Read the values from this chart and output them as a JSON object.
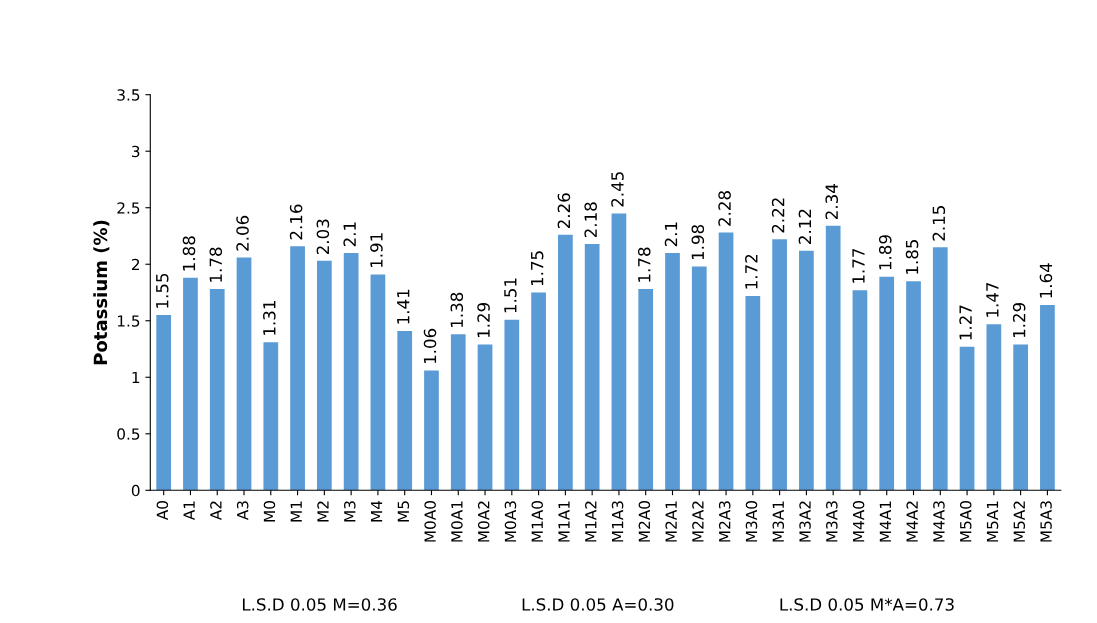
{
  "chart_data": {
    "type": "bar",
    "ylabel": "Potassium (%)",
    "categories": [
      "A0",
      "A1",
      "A2",
      "A3",
      "M0",
      "M1",
      "M2",
      "M3",
      "M4",
      "M5",
      "M0A0",
      "M0A1",
      "M0A2",
      "M0A3",
      "M1A0",
      "M1A1",
      "M1A2",
      "M1A3",
      "M2A0",
      "M2A1",
      "M2A2",
      "M2A3",
      "M3A0",
      "M3A1",
      "M3A2",
      "M3A3",
      "M4A0",
      "M4A1",
      "M4A2",
      "M4A3",
      "M5A0",
      "M5A1",
      "M5A2",
      "M5A3"
    ],
    "values": [
      1.55,
      1.88,
      1.78,
      2.06,
      1.31,
      2.16,
      2.03,
      2.1,
      1.91,
      1.41,
      1.06,
      1.38,
      1.29,
      1.51,
      1.75,
      2.26,
      2.18,
      2.45,
      1.78,
      2.1,
      1.98,
      2.28,
      1.72,
      2.22,
      2.12,
      2.34,
      1.77,
      1.89,
      1.85,
      2.15,
      1.27,
      1.47,
      1.29,
      1.64
    ],
    "color": "#5b9bd5",
    "ylim": [
      0,
      3.5
    ],
    "yticks": [
      0,
      0.5,
      1,
      1.5,
      2,
      2.5,
      3,
      3.5
    ],
    "data_labels": true,
    "grid": false,
    "legend": false,
    "annotations": [
      "L.S.D 0.05 M=0.36",
      "L.S.D 0.05 A=0.30",
      "L.S.D 0.05 M*A=0.73"
    ]
  }
}
